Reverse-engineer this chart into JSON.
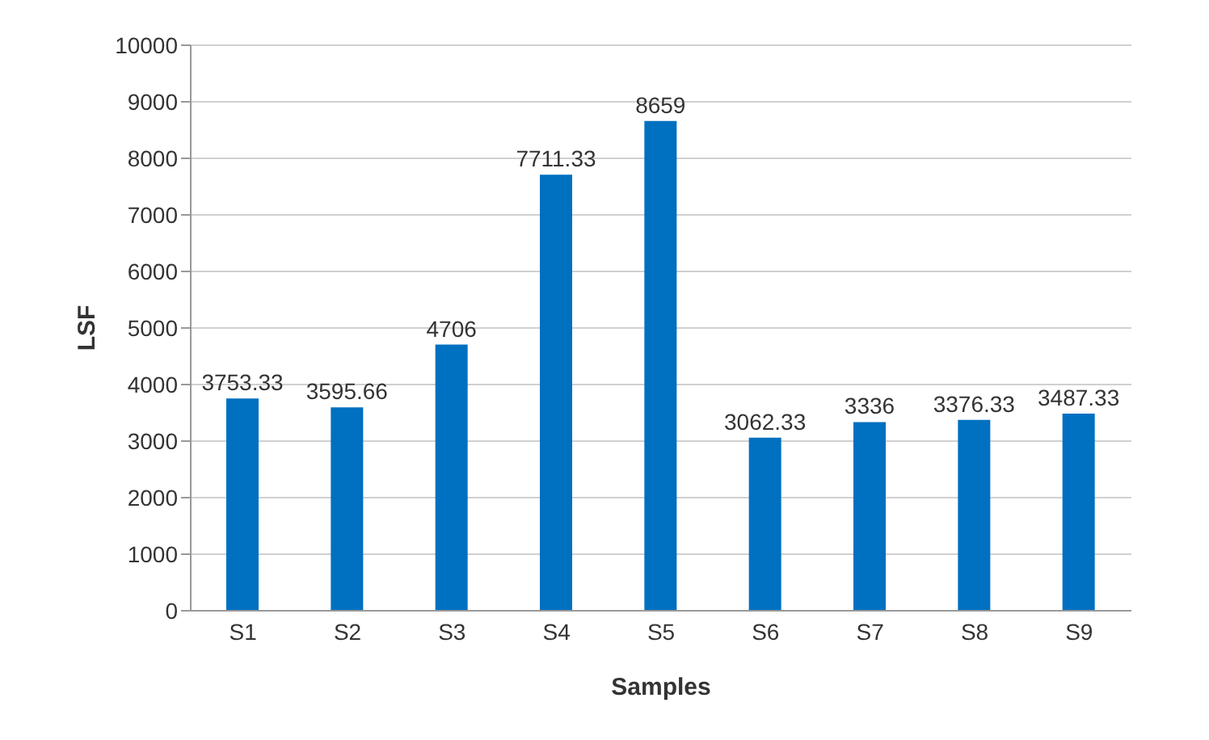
{
  "chart_data": {
    "type": "bar",
    "xlabel": "Samples",
    "ylabel": "LSF",
    "categories": [
      "S1",
      "S2",
      "S3",
      "S4",
      "S5",
      "S6",
      "S7",
      "S8",
      "S9"
    ],
    "values": [
      3753.33,
      3595.66,
      4706,
      7711.33,
      8659,
      3062.33,
      3336,
      3376.33,
      3487.33
    ],
    "color": "#0070c0",
    "ylim": [
      0,
      10000
    ],
    "yticks": [
      0,
      1000,
      2000,
      3000,
      4000,
      5000,
      6000,
      7000,
      8000,
      9000,
      10000
    ],
    "grid": "y",
    "data_labels": true
  }
}
